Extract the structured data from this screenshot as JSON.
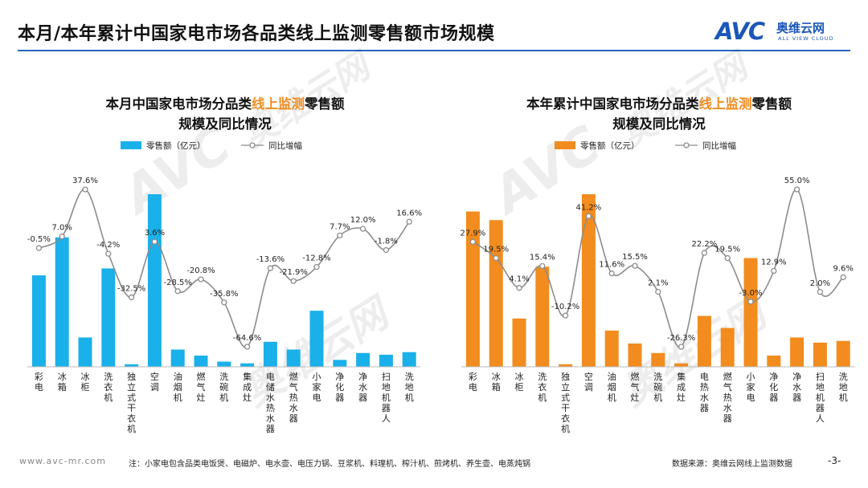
{
  "header": {
    "title": "本月/本年累计中国家电市场各品类线上监测零售额市场规模",
    "logo_text": "AVC",
    "logo_cn": "奥维云网",
    "logo_en": "ALL VIEW CLOUD"
  },
  "colors": {
    "blue_bar": "#1ab0ea",
    "orange_bar": "#f28c1e",
    "line": "#8c8c8c",
    "highlight": "#f08c1e",
    "rule": "#2a66c2"
  },
  "watermark": {
    "avc": "AVC",
    "cn": "奥维云网",
    "en": "ALL VIEW CLOUD"
  },
  "charts": [
    {
      "title_part1": "本月中国家电市场分品类",
      "title_highlight": "线上监测",
      "title_part2": "零售额",
      "title_line2": "规模及同比情况",
      "legend_bar": "零售额（亿元）",
      "legend_line": "同比增幅"
    },
    {
      "title_part1": "本年累计中国家电市场分品类",
      "title_highlight": "线上监测",
      "title_part2": "零售额",
      "title_line2": "规模及同比情况",
      "legend_bar": "零售额（亿元）",
      "legend_line": "同比增幅"
    }
  ],
  "chart_data": [
    {
      "type": "bar",
      "title": "本月中国家电市场分品类线上监测零售额规模及同比情况",
      "categories": [
        "彩电",
        "冰箱",
        "冰柜",
        "洗衣机",
        "独立式干衣机",
        "空调",
        "油烟机",
        "燃气灶",
        "洗碗机",
        "集成灶",
        "电储水热水器",
        "燃气热水器",
        "小家电",
        "净化器",
        "净水器",
        "扫地机器人",
        "洗地机"
      ],
      "series": [
        {
          "name": "零售额（亿元）",
          "type": "bar",
          "values": [
            53,
            75,
            17,
            57,
            1.5,
            100,
            10,
            6.5,
            3,
            2,
            14.5,
            10,
            32.5,
            4,
            8,
            7,
            8.5
          ]
        },
        {
          "name": "同比增幅",
          "type": "line",
          "values": [
            -0.5,
            7.0,
            37.6,
            -4.2,
            -32.5,
            3.6,
            -28.5,
            -20.8,
            -35.8,
            -64.6,
            -13.6,
            -21.9,
            -12.8,
            7.7,
            12.0,
            -1.8,
            16.6
          ]
        }
      ],
      "data_labels": [
        "-0.5%",
        "7.0%",
        "37.6%",
        "-4.2%",
        "-32.5%",
        "3.6%",
        "-28.5%",
        "-20.8%",
        "-35.8%",
        "-64.6%",
        "-13.6%",
        "-21.9%",
        "-12.8%",
        "7.7%",
        "12.0%",
        "-1.8%",
        "16.6%"
      ]
    },
    {
      "type": "bar",
      "title": "本年累计中国家电市场分品类线上监测零售额规模及同比情况",
      "categories": [
        "彩电",
        "冰箱",
        "冰柜",
        "洗衣机",
        "独立式干衣机",
        "空调",
        "油烟机",
        "燃气灶",
        "洗碗机",
        "集成灶",
        "电热水器",
        "燃气热水器",
        "小家电",
        "净化器",
        "净水器",
        "扫地机器人",
        "洗地机"
      ],
      "series": [
        {
          "name": "零售额（亿元）",
          "type": "bar",
          "values": [
            90,
            85,
            28,
            58,
            1.5,
            100,
            21,
            13.5,
            8,
            2,
            29.5,
            22.5,
            63,
            6.5,
            17,
            14,
            15
          ]
        },
        {
          "name": "同比增幅",
          "type": "line",
          "values": [
            27.9,
            19.5,
            4.1,
            15.4,
            -10.2,
            41.2,
            11.6,
            15.5,
            2.1,
            -26.3,
            22.2,
            19.5,
            -3.0,
            12.9,
            55.0,
            2.0,
            9.6
          ]
        }
      ],
      "data_labels": [
        "27.9%",
        "19.5%",
        "4.1%",
        "15.4%",
        "-10.2%",
        "41.2%",
        "11.6%",
        "15.5%",
        "2.1%",
        "-26.3%",
        "22.2%",
        "19.5%",
        "-3.0%",
        "12.9%",
        "55.0%",
        "2.0%",
        "9.6%"
      ]
    }
  ],
  "footer": {
    "url": "www.avc-mr.com",
    "note": "注：小家电包含品类电饭煲、电磁炉、电水壶、电压力锅、豆浆机、料理机、榨汁机、煎烤机、养生壶、电蒸炖锅",
    "source": "数据来源：奥维云网线上监测数据",
    "page": "-3-"
  }
}
